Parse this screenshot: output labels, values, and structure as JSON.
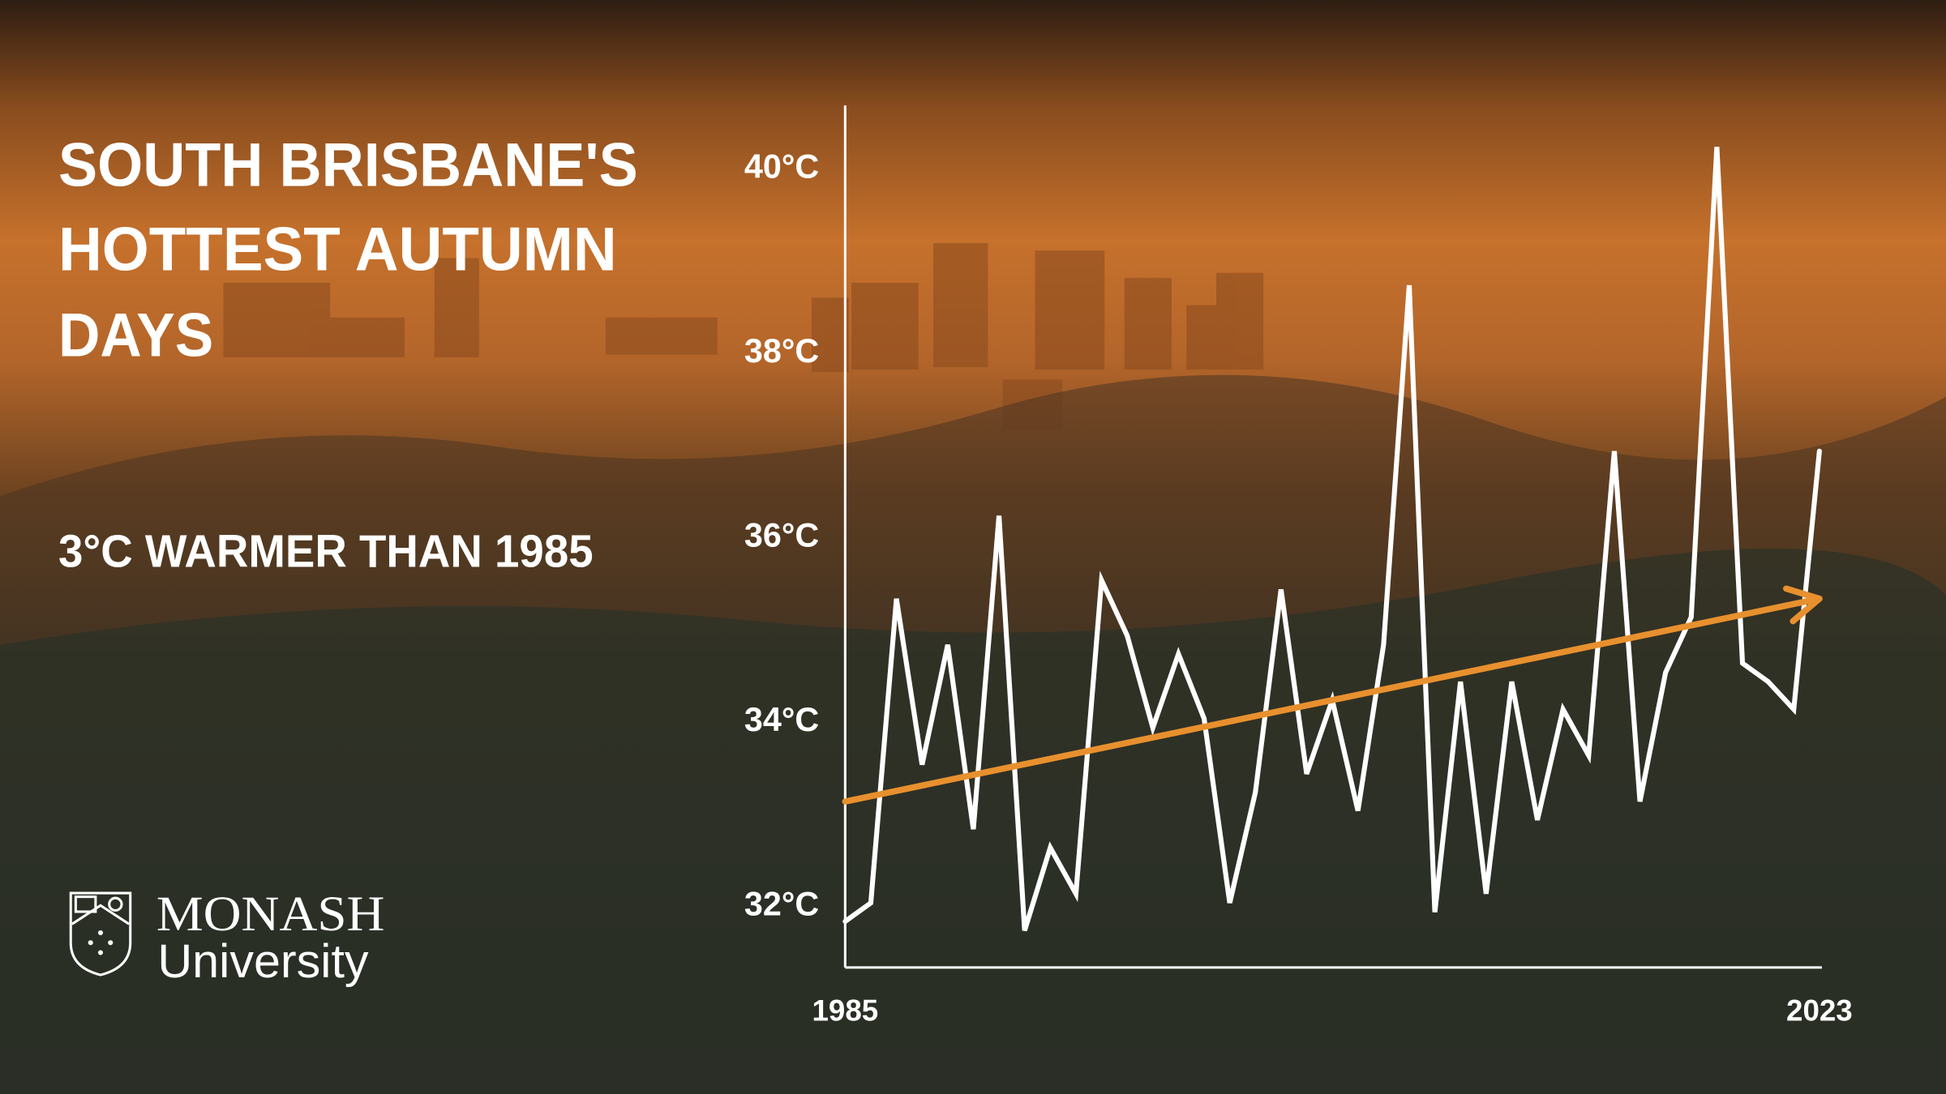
{
  "chart_data": {
    "type": "line",
    "title": [
      "SOUTH BRISBANE'S",
      "HOTTEST AUTUMN",
      "DAYS"
    ],
    "subtitle": "3°C WARMER THAN 1985",
    "x": [
      1985,
      1986,
      1987,
      1988,
      1989,
      1990,
      1991,
      1992,
      1993,
      1994,
      1995,
      1996,
      1997,
      1998,
      1999,
      2000,
      2001,
      2002,
      2003,
      2004,
      2005,
      2006,
      2007,
      2008,
      2009,
      2010,
      2011,
      2012,
      2013,
      2014,
      2015,
      2016,
      2017,
      2018,
      2019,
      2020,
      2021,
      2022,
      2023
    ],
    "series": [
      {
        "color": "#ffffff",
        "values": [
          31.8,
          32.0,
          35.3,
          33.5,
          34.8,
          32.8,
          36.2,
          31.7,
          32.6,
          32.1,
          35.5,
          34.9,
          33.9,
          34.7,
          34.0,
          32.0,
          33.2,
          35.4,
          33.4,
          34.2,
          33.0,
          34.8,
          38.7,
          31.9,
          34.4,
          32.1,
          34.4,
          32.9,
          34.1,
          33.6,
          36.9,
          33.1,
          34.5,
          35.1,
          40.2,
          34.6,
          34.4,
          34.1,
          36.9
        ]
      },
      {
        "color": "#e8902e",
        "x": [
          1985,
          2023
        ],
        "values": [
          33.1,
          35.3
        ]
      }
    ],
    "xlim": [
      1985,
      2023
    ],
    "xticks": [
      1985,
      2023
    ],
    "ylim": [
      31.3,
      40.65
    ],
    "yticks": [
      {
        "value": 32,
        "label": "32°C"
      },
      {
        "value": 34,
        "label": "34°C"
      },
      {
        "value": 36,
        "label": "36°C"
      },
      {
        "value": 38,
        "label": "38°C"
      },
      {
        "value": 40,
        "label": "40°C"
      }
    ],
    "grid": false
  },
  "logo": {
    "name": "MONASH",
    "sub": "University"
  }
}
